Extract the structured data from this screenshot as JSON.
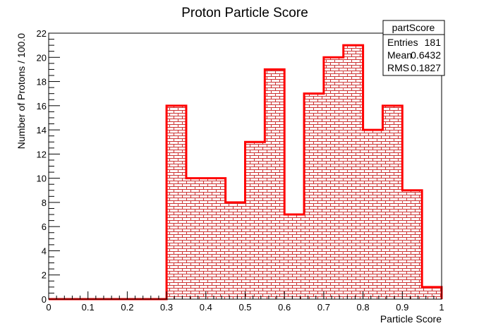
{
  "chart_data": {
    "type": "bar",
    "title": "Proton Particle Score",
    "xlabel": "Particle Score",
    "ylabel": "Number of Protons / 100.0",
    "xlim": [
      0,
      1
    ],
    "ylim": [
      0,
      22
    ],
    "bin_width": 0.05,
    "x_ticks": [
      "0",
      "0.1",
      "0.2",
      "0.3",
      "0.4",
      "0.5",
      "0.6",
      "0.7",
      "0.8",
      "0.9",
      "1"
    ],
    "y_ticks": [
      "0",
      "2",
      "4",
      "6",
      "8",
      "10",
      "12",
      "14",
      "16",
      "18",
      "20",
      "22"
    ],
    "bins": [
      {
        "x": 0.0,
        "value": 0
      },
      {
        "x": 0.05,
        "value": 0
      },
      {
        "x": 0.1,
        "value": 0
      },
      {
        "x": 0.15,
        "value": 0
      },
      {
        "x": 0.2,
        "value": 0
      },
      {
        "x": 0.25,
        "value": 0
      },
      {
        "x": 0.3,
        "value": 16
      },
      {
        "x": 0.35,
        "value": 10
      },
      {
        "x": 0.4,
        "value": 10
      },
      {
        "x": 0.45,
        "value": 8
      },
      {
        "x": 0.5,
        "value": 13
      },
      {
        "x": 0.55,
        "value": 19
      },
      {
        "x": 0.6,
        "value": 7
      },
      {
        "x": 0.65,
        "value": 17
      },
      {
        "x": 0.7,
        "value": 20
      },
      {
        "x": 0.75,
        "value": 21
      },
      {
        "x": 0.8,
        "value": 14
      },
      {
        "x": 0.85,
        "value": 16
      },
      {
        "x": 0.9,
        "value": 9
      },
      {
        "x": 0.95,
        "value": 1
      }
    ],
    "grid": false,
    "line_color": "#ff0000",
    "fill_pattern": "brick",
    "stats_box": {
      "title": "partScore",
      "placement": "top-right",
      "rows": [
        {
          "label": "Entries",
          "value": "181"
        },
        {
          "label": "Mean",
          "value": "0.6432"
        },
        {
          "label": "RMS",
          "value": "0.1827"
        }
      ]
    }
  }
}
